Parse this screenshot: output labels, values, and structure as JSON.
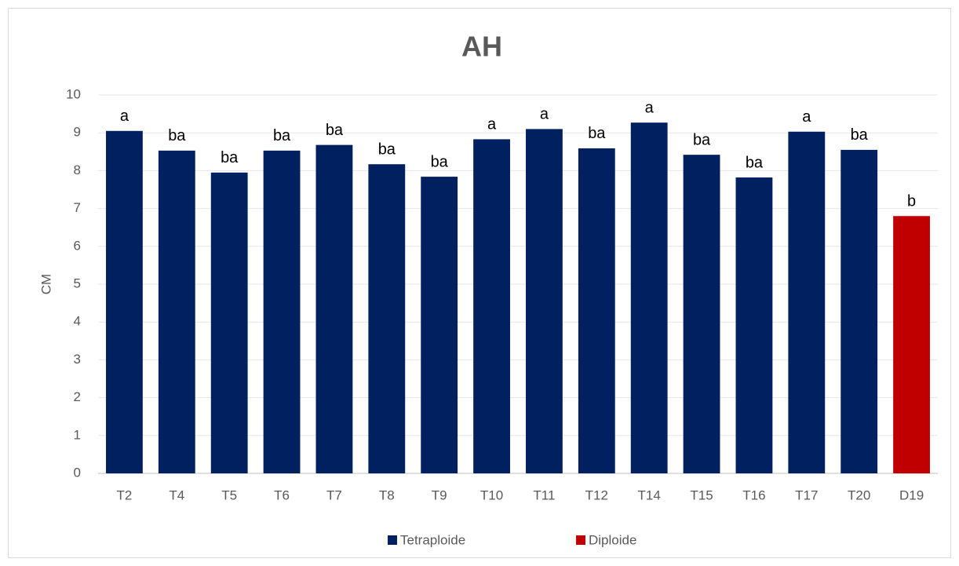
{
  "chart_data": {
    "type": "bar",
    "title": "AH",
    "y_label": "CM",
    "categories": [
      "T2",
      "T4",
      "T5",
      "T6",
      "T7",
      "T8",
      "T9",
      "T10",
      "T11",
      "T12",
      "T14",
      "T15",
      "T16",
      "T17",
      "T20",
      "D19"
    ],
    "series": [
      {
        "name": "Tetraploide",
        "color": "#002060",
        "values": [
          9.05,
          8.53,
          7.95,
          8.53,
          8.68,
          8.17,
          7.84,
          8.83,
          9.1,
          8.59,
          9.27,
          8.42,
          7.82,
          9.03,
          8.55,
          null
        ]
      },
      {
        "name": "Diploide",
        "color": "#c00000",
        "values": [
          null,
          null,
          null,
          null,
          null,
          null,
          null,
          null,
          null,
          null,
          null,
          null,
          null,
          null,
          null,
          6.8
        ]
      }
    ],
    "annotations": [
      "a",
      "ba",
      "ba",
      "ba",
      "ba",
      "ba",
      "ba",
      "a",
      "a",
      "ba",
      "a",
      "ba",
      "ba",
      "a",
      "ba",
      "b"
    ],
    "ylim": [
      0,
      10
    ],
    "yticks": [
      0,
      1,
      2,
      3,
      4,
      5,
      6,
      7,
      8,
      9,
      10
    ],
    "grid": true,
    "legend": "bottom"
  }
}
